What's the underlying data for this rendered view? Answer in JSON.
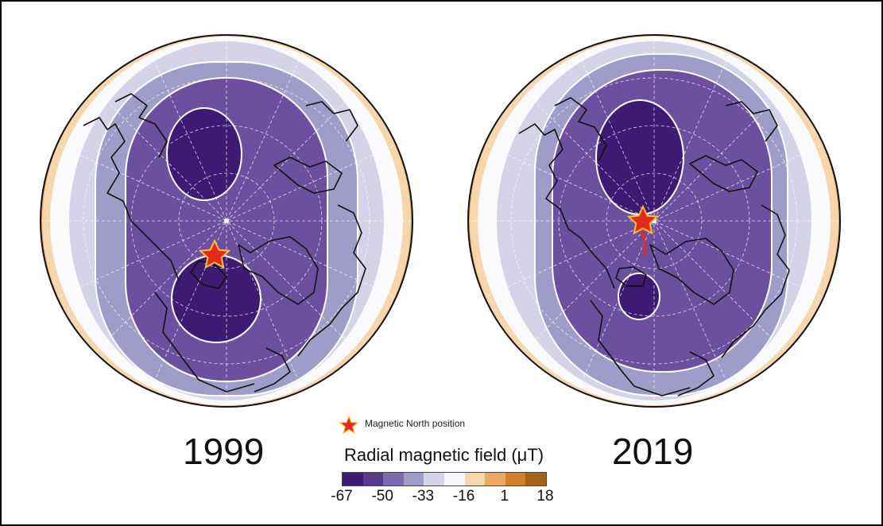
{
  "figure": {
    "panels": [
      {
        "year": "1999"
      },
      {
        "year": "2019"
      }
    ],
    "legend": {
      "star_label": "Magnetic North position"
    },
    "colorbar": {
      "title": "Radial magnetic field (μT)",
      "ticks": [
        "-67",
        "-50",
        "-33",
        "-16",
        "1",
        "18"
      ],
      "colors": [
        "#3f1a73",
        "#5a3a8e",
        "#7b6aae",
        "#a09cc9",
        "#d4d3e8",
        "#f7f6fa",
        "#f6d7ad",
        "#eaa862",
        "#d17f2a",
        "#a8601b"
      ]
    }
  }
}
